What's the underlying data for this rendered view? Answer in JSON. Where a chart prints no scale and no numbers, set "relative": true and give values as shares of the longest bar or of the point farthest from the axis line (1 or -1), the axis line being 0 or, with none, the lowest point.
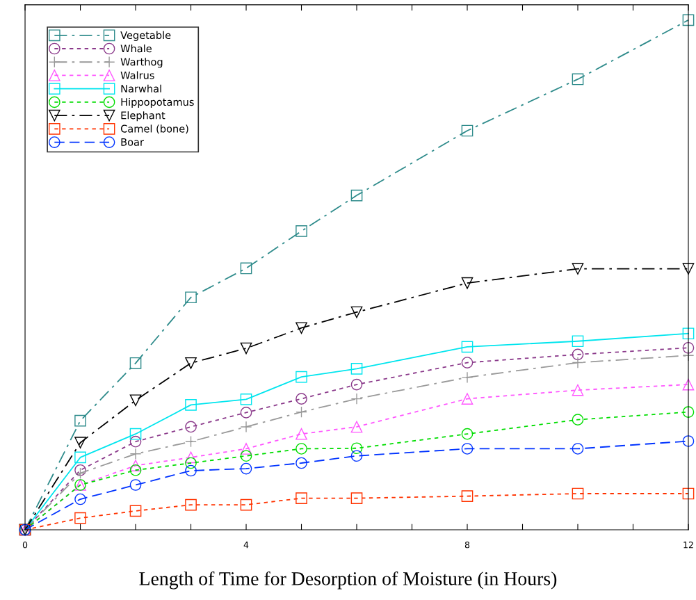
{
  "chart_data": {
    "type": "line",
    "xlabel": "Length of Time for Desorption of Moisture (in Hours)",
    "relative": true,
    "x": [
      0,
      1,
      2,
      3,
      4,
      5,
      6,
      8,
      10,
      12
    ],
    "xlim": [
      0,
      12
    ],
    "xticks": [
      0,
      {
        "value": 1,
        "label": null
      },
      {
        "value": 2,
        "label": null
      },
      {
        "value": 3,
        "label": null
      },
      4,
      {
        "value": 5,
        "label": null
      },
      {
        "value": 6,
        "label": null
      },
      {
        "value": 7,
        "label": null
      },
      8,
      {
        "value": 9,
        "label": null
      },
      {
        "value": 10,
        "label": null
      },
      {
        "value": 11,
        "label": null
      },
      12
    ],
    "legend": "top left",
    "grid": false,
    "series": [
      {
        "name": "Vegetable",
        "color": "#2e8b8b",
        "marker": "square",
        "line_style": "dashdot",
        "values": [
          0,
          0.214,
          0.327,
          0.456,
          0.513,
          0.586,
          0.656,
          0.783,
          0.884,
          1
        ]
      },
      {
        "name": "Whale",
        "color": "#8b3a8b",
        "marker": "circle",
        "line_style": "dotted",
        "values": [
          0,
          0.117,
          0.173,
          0.202,
          0.23,
          0.257,
          0.285,
          0.328,
          0.344,
          0.357
        ]
      },
      {
        "name": "Warthog",
        "color": "#999999",
        "marker": "cross",
        "line_style": "dashdot",
        "values": [
          0,
          0.111,
          0.149,
          0.173,
          0.202,
          0.231,
          0.257,
          0.299,
          0.328,
          0.342
        ]
      },
      {
        "name": "Walrus",
        "color": "#ff55ff",
        "marker": "triangle",
        "line_style": "dotted",
        "values": [
          0,
          0.088,
          0.126,
          0.142,
          0.159,
          0.188,
          0.202,
          0.257,
          0.274,
          0.285
        ]
      },
      {
        "name": "Narwhal",
        "color": "#00e5ee",
        "marker": "square",
        "line_style": "solid",
        "values": [
          0,
          0.142,
          0.188,
          0.245,
          0.256,
          0.3,
          0.316,
          0.359,
          0.37,
          0.385
        ]
      },
      {
        "name": "Hippopotamus",
        "color": "#00dd00",
        "marker": "circle",
        "line_style": "dotted",
        "values": [
          0,
          0.088,
          0.117,
          0.131,
          0.145,
          0.159,
          0.16,
          0.188,
          0.216,
          0.231
        ]
      },
      {
        "name": "Elephant",
        "color": "#000000",
        "marker": "triangle-down",
        "line_style": "dashdot",
        "values": [
          0,
          0.171,
          0.254,
          0.327,
          0.356,
          0.396,
          0.427,
          0.484,
          0.512,
          0.512
        ]
      },
      {
        "name": "Camel (bone)",
        "color": "#ff3300",
        "marker": "square",
        "line_style": "dotted",
        "values": [
          0,
          0.023,
          0.037,
          0.049,
          0.049,
          0.062,
          0.062,
          0.066,
          0.071,
          0.071
        ]
      },
      {
        "name": "Boar",
        "color": "#0033ff",
        "marker": "circle",
        "line_style": "dashed",
        "values": [
          0,
          0.06,
          0.088,
          0.116,
          0.12,
          0.131,
          0.145,
          0.159,
          0.159,
          0.174
        ]
      }
    ]
  }
}
